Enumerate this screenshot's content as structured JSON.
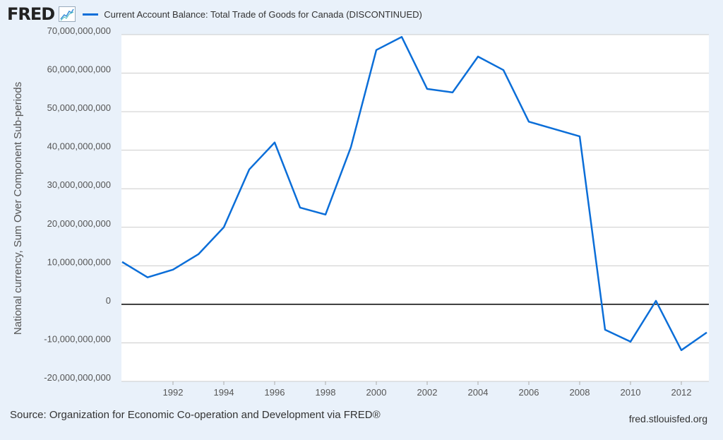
{
  "header": {
    "logo": "FRED"
  },
  "source": "Source: Organization for Economic Co-operation and Development via FRED®",
  "site": "fred.stlouisfed.org",
  "colors": {
    "line": "#0b6ed8",
    "grid": "#cccccc",
    "zero": "#000000"
  },
  "chart_data": {
    "type": "line",
    "title": "Current Account Balance: Total Trade of Goods for Canada (DISCONTINUED)",
    "ylabel": "National currency, Sum Over Component Sub-periods",
    "xlabel": "",
    "xlim": [
      1990,
      2013
    ],
    "ylim": [
      -20000000000,
      70000000000
    ],
    "x_ticks": [
      "1992",
      "1994",
      "1996",
      "1998",
      "2000",
      "2002",
      "2004",
      "2006",
      "2008",
      "2010",
      "2012"
    ],
    "y_ticks": [
      "-20,000,000,000",
      "-10,000,000,000",
      "0",
      "10,000,000,000",
      "20,000,000,000",
      "30,000,000,000",
      "40,000,000,000",
      "50,000,000,000",
      "60,000,000,000",
      "70,000,000,000"
    ],
    "legend": "top-left",
    "series": [
      {
        "name": "Current Account Balance: Total Trade of Goods for Canada (DISCONTINUED)",
        "x": [
          1990,
          1991,
          1992,
          1993,
          1994,
          1995,
          1996,
          1997,
          1998,
          1999,
          2000,
          2001,
          2002,
          2003,
          2004,
          2005,
          2006,
          2007,
          2008,
          2009,
          2010,
          2011,
          2012,
          2013
        ],
        "values": [
          11000000000.0,
          7000000000.0,
          9000000000.0,
          13000000000.0,
          20000000000.0,
          35000000000.0,
          42000000000.0,
          25100000000.0,
          23300000000.0,
          40800000000.0,
          66000000000.0,
          69400000000.0,
          55900000000.0,
          55000000000.0,
          64300000000.0,
          60800000000.0,
          47400000000.0,
          45500000000.0,
          43600000000.0,
          -6600000000.0,
          -9700000000.0,
          900000000.0,
          -11900000000.0,
          -7300000000.0
        ]
      }
    ]
  }
}
